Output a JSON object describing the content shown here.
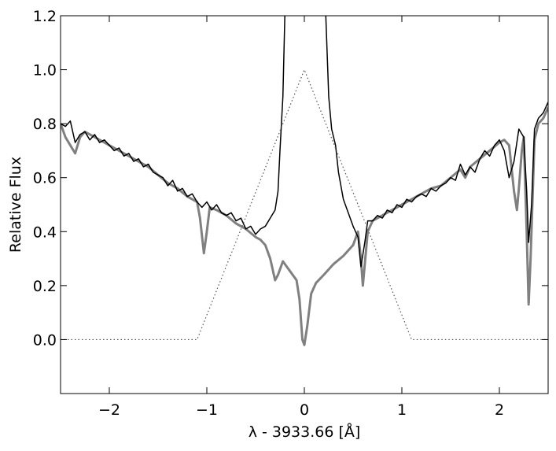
{
  "chart_data": {
    "type": "line",
    "xlabel": "λ - 3933.66 [Å]",
    "ylabel": "Relative Flux",
    "xlim": [
      -2.5,
      2.5
    ],
    "ylim": [
      -0.2,
      1.2
    ],
    "xticks": [
      {
        "value": -2,
        "label": "−2"
      },
      {
        "value": -1,
        "label": "−1"
      },
      0,
      1,
      2
    ],
    "yticks": [
      {
        "value": 0,
        "label": "0.0"
      },
      0.2,
      0.4,
      0.6,
      0.8,
      {
        "value": 1,
        "label": "1.0"
      },
      1.2
    ],
    "series": [
      {
        "color": "#808080",
        "linewidth": 3,
        "linestyle": "solid",
        "x": [
          -2.5,
          -2.45,
          -2.4,
          -2.35,
          -2.3,
          -2.25,
          -2.2,
          -2.1,
          -2.0,
          -1.9,
          -1.8,
          -1.7,
          -1.6,
          -1.5,
          -1.4,
          -1.3,
          -1.2,
          -1.1,
          -1.07,
          -1.03,
          -1.0,
          -0.97,
          -0.9,
          -0.8,
          -0.7,
          -0.6,
          -0.5,
          -0.45,
          -0.4,
          -0.35,
          -0.3,
          -0.27,
          -0.22,
          -0.18,
          -0.12,
          -0.08,
          -0.05,
          -0.02,
          0.0,
          0.03,
          0.07,
          0.12,
          0.2,
          0.3,
          0.4,
          0.5,
          0.55,
          0.58,
          0.6,
          0.62,
          0.65,
          0.7,
          0.8,
          0.9,
          1.0,
          1.1,
          1.2,
          1.3,
          1.4,
          1.5,
          1.6,
          1.65,
          1.7,
          1.8,
          1.9,
          2.0,
          2.05,
          2.1,
          2.15,
          2.18,
          2.2,
          2.23,
          2.25,
          2.28,
          2.3,
          2.32,
          2.36,
          2.4,
          2.45,
          2.5
        ],
        "values": [
          0.8,
          0.75,
          0.72,
          0.69,
          0.75,
          0.77,
          0.76,
          0.74,
          0.72,
          0.7,
          0.68,
          0.66,
          0.64,
          0.61,
          0.58,
          0.56,
          0.53,
          0.51,
          0.45,
          0.32,
          0.4,
          0.49,
          0.48,
          0.46,
          0.43,
          0.41,
          0.38,
          0.37,
          0.35,
          0.3,
          0.22,
          0.24,
          0.29,
          0.27,
          0.24,
          0.22,
          0.15,
          0.0,
          -0.02,
          0.05,
          0.17,
          0.21,
          0.24,
          0.28,
          0.31,
          0.35,
          0.4,
          0.3,
          0.2,
          0.28,
          0.4,
          0.44,
          0.46,
          0.48,
          0.5,
          0.52,
          0.54,
          0.56,
          0.57,
          0.6,
          0.63,
          0.6,
          0.64,
          0.67,
          0.7,
          0.73,
          0.74,
          0.72,
          0.55,
          0.48,
          0.56,
          0.7,
          0.75,
          0.4,
          0.13,
          0.3,
          0.74,
          0.8,
          0.82,
          0.86
        ]
      },
      {
        "color": "#000000",
        "linewidth": 1.5,
        "linestyle": "solid",
        "x": [
          -2.5,
          -2.45,
          -2.4,
          -2.35,
          -2.3,
          -2.25,
          -2.2,
          -2.15,
          -2.1,
          -2.05,
          -2.0,
          -1.95,
          -1.9,
          -1.85,
          -1.8,
          -1.75,
          -1.7,
          -1.65,
          -1.6,
          -1.55,
          -1.5,
          -1.45,
          -1.4,
          -1.35,
          -1.3,
          -1.25,
          -1.2,
          -1.15,
          -1.1,
          -1.05,
          -1.0,
          -0.95,
          -0.9,
          -0.85,
          -0.8,
          -0.75,
          -0.7,
          -0.65,
          -0.6,
          -0.55,
          -0.5,
          -0.45,
          -0.4,
          -0.35,
          -0.3,
          -0.27,
          -0.25,
          -0.22,
          -0.2,
          -0.18,
          0.2,
          0.22,
          0.25,
          0.28,
          0.32,
          0.35,
          0.4,
          0.45,
          0.5,
          0.55,
          0.58,
          0.62,
          0.65,
          0.7,
          0.75,
          0.8,
          0.85,
          0.9,
          0.95,
          1.0,
          1.05,
          1.1,
          1.15,
          1.2,
          1.25,
          1.3,
          1.35,
          1.4,
          1.45,
          1.5,
          1.55,
          1.6,
          1.65,
          1.7,
          1.75,
          1.8,
          1.85,
          1.9,
          1.95,
          2.0,
          2.05,
          2.1,
          2.15,
          2.2,
          2.25,
          2.28,
          2.3,
          2.33,
          2.36,
          2.4,
          2.45,
          2.5
        ],
        "values": [
          0.8,
          0.79,
          0.81,
          0.73,
          0.76,
          0.77,
          0.74,
          0.76,
          0.73,
          0.74,
          0.72,
          0.7,
          0.71,
          0.68,
          0.69,
          0.66,
          0.67,
          0.64,
          0.65,
          0.62,
          0.61,
          0.6,
          0.57,
          0.59,
          0.55,
          0.56,
          0.53,
          0.54,
          0.51,
          0.49,
          0.51,
          0.48,
          0.5,
          0.47,
          0.46,
          0.47,
          0.44,
          0.45,
          0.41,
          0.42,
          0.39,
          0.41,
          0.42,
          0.45,
          0.48,
          0.55,
          0.7,
          0.9,
          1.2,
          1.5,
          1.5,
          1.2,
          0.9,
          0.78,
          0.72,
          0.62,
          0.52,
          0.47,
          0.42,
          0.38,
          0.27,
          0.36,
          0.44,
          0.44,
          0.46,
          0.45,
          0.48,
          0.47,
          0.5,
          0.49,
          0.52,
          0.51,
          0.53,
          0.54,
          0.53,
          0.56,
          0.55,
          0.57,
          0.58,
          0.6,
          0.59,
          0.65,
          0.61,
          0.64,
          0.62,
          0.67,
          0.7,
          0.68,
          0.72,
          0.74,
          0.7,
          0.6,
          0.66,
          0.78,
          0.75,
          0.55,
          0.36,
          0.5,
          0.78,
          0.82,
          0.84,
          0.88
        ]
      },
      {
        "color": "#555555",
        "linewidth": 1.2,
        "linestyle": "dotted",
        "x": [
          -2.5,
          -1.1,
          0,
          1.1,
          2.5
        ],
        "values": [
          0,
          0,
          1,
          0,
          0
        ]
      }
    ]
  }
}
